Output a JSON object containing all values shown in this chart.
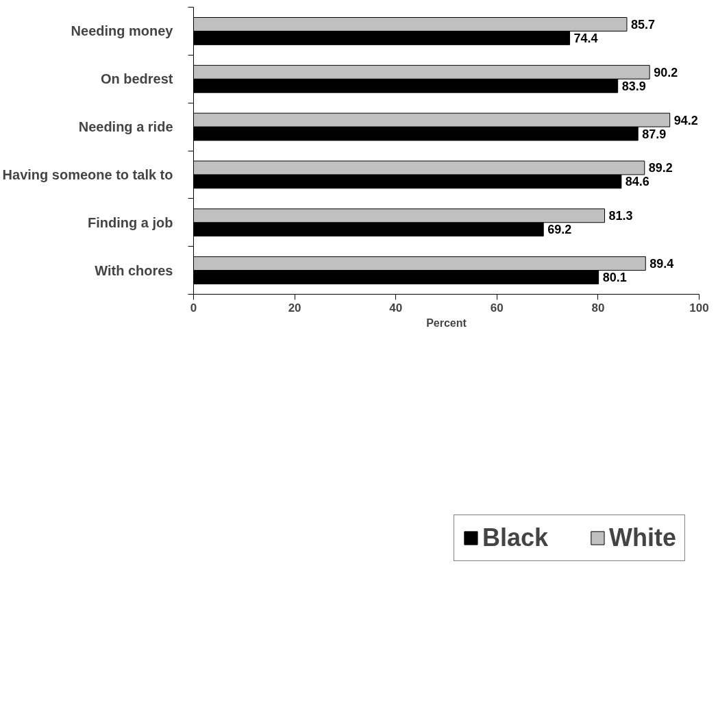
{
  "chart_data": {
    "type": "bar",
    "orientation": "horizontal",
    "xlabel": "Percent",
    "categories": [
      "Needing money",
      "On bedrest",
      "Needing a ride",
      "Having someone to talk to",
      "Finding a job",
      "With chores"
    ],
    "series": [
      {
        "name": "Black",
        "color": "#000000",
        "values": [
          74.4,
          83.9,
          87.9,
          84.6,
          69.2,
          80.1
        ]
      },
      {
        "name": "White",
        "color": "#c0c0c0",
        "values": [
          85.7,
          90.2,
          94.2,
          89.2,
          81.3,
          89.4
        ]
      }
    ],
    "xlim": [
      0,
      100
    ],
    "xticks": [
      0,
      20,
      40,
      60,
      80,
      100
    ],
    "data_labels": true,
    "grid": false,
    "legend": "bottom"
  }
}
